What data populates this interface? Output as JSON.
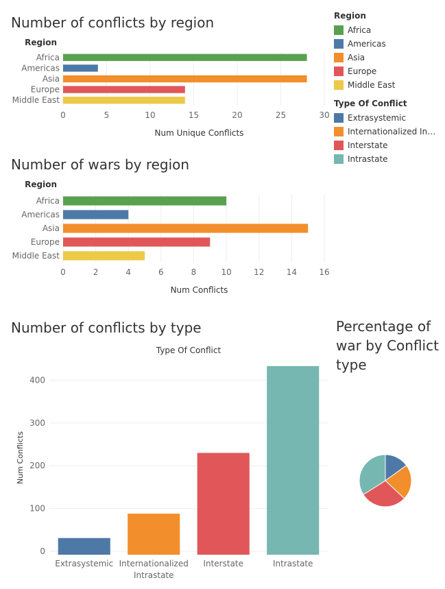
{
  "titles": {
    "chart1": "Number of conflicts by region",
    "chart2": "Number of wars by region",
    "chart3": "Number of conflicts by type",
    "chart4": "Percentage of war by Conflict type"
  },
  "legend": {
    "region_title": "Region",
    "region_items": [
      {
        "label": "Africa",
        "color": "#59a14f"
      },
      {
        "label": "Americas",
        "color": "#4e79a7"
      },
      {
        "label": "Asia",
        "color": "#f28e2b"
      },
      {
        "label": "Europe",
        "color": "#e15759"
      },
      {
        "label": "Middle East",
        "color": "#edc948"
      }
    ],
    "type_title": "Type Of Conflict",
    "type_items": [
      {
        "label": "Extrasystemic",
        "color": "#4e79a7"
      },
      {
        "label": "Internationalized Intr..",
        "color": "#f28e2b"
      },
      {
        "label": "Interstate",
        "color": "#e15759"
      },
      {
        "label": "Intrastate",
        "color": "#76b7b2"
      }
    ]
  },
  "chart_data": [
    {
      "type": "bar",
      "orientation": "horizontal",
      "title": "Number of conflicts by region",
      "row_header": "Region",
      "categories": [
        "Africa",
        "Americas",
        "Asia",
        "Europe",
        "Middle East"
      ],
      "values": [
        28,
        4,
        28,
        14,
        14
      ],
      "colors": [
        "#59a14f",
        "#4e79a7",
        "#f28e2b",
        "#e15759",
        "#edc948"
      ],
      "xlabel": "Num Unique Conflicts",
      "xlim": [
        0,
        30
      ],
      "xticks": [
        0,
        5,
        10,
        15,
        20,
        25,
        30
      ],
      "grid": true
    },
    {
      "type": "bar",
      "orientation": "horizontal",
      "title": "Number of wars by region",
      "row_header": "Region",
      "categories": [
        "Africa",
        "Americas",
        "Asia",
        "Europe",
        "Middle East"
      ],
      "values": [
        10,
        4,
        15,
        9,
        5
      ],
      "colors": [
        "#59a14f",
        "#4e79a7",
        "#f28e2b",
        "#e15759",
        "#edc948"
      ],
      "xlabel": "Num Conflicts",
      "xlim": [
        0,
        16
      ],
      "xticks": [
        0,
        2,
        4,
        6,
        8,
        10,
        12,
        14,
        16
      ],
      "grid": true
    },
    {
      "type": "bar",
      "orientation": "vertical",
      "title": "Number of conflicts by type",
      "column_header": "Type Of Conflict",
      "categories": [
        "Extrasystemic",
        "Internationalized Intrastate",
        "Interstate",
        "Intrastate"
      ],
      "category_lines": [
        [
          "Extrasystemic"
        ],
        [
          "Internationalized",
          "Intrastate"
        ],
        [
          "Interstate"
        ],
        [
          "Intrastate"
        ]
      ],
      "values": [
        31,
        88,
        230,
        433
      ],
      "colors": [
        "#4e79a7",
        "#f28e2b",
        "#e15759",
        "#76b7b2"
      ],
      "ylabel": "Num Conflicts",
      "ylim": [
        -8,
        452
      ],
      "yticks": [
        0,
        100,
        200,
        300,
        400
      ],
      "grid": true
    },
    {
      "type": "pie",
      "title": "Percentage of war by Conflict type",
      "categories": [
        "Extrasystemic",
        "Internationalized Intrastate",
        "Interstate",
        "Intrastate"
      ],
      "values": [
        15,
        22,
        29,
        34
      ],
      "colors": [
        "#4e79a7",
        "#f28e2b",
        "#e15759",
        "#76b7b2"
      ]
    }
  ]
}
